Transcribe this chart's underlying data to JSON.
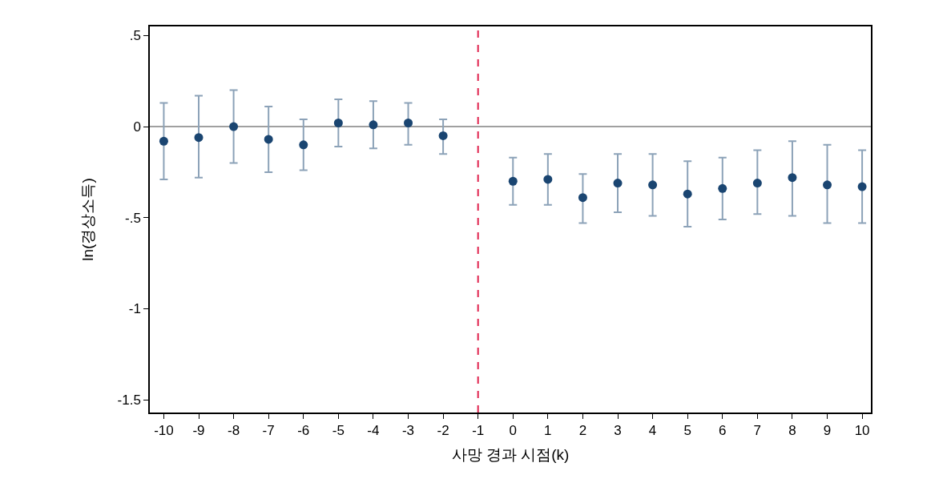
{
  "chart_data": {
    "type": "scatter",
    "xlabel": "사망 경과 시점(k)",
    "ylabel": "ln(경상소득)",
    "x": [
      -10,
      -9,
      -8,
      -7,
      -6,
      -5,
      -4,
      -3,
      -2,
      0,
      1,
      2,
      3,
      4,
      5,
      6,
      7,
      8,
      9,
      10
    ],
    "series": [
      {
        "color": "#1a4571",
        "values": [
          -0.08,
          -0.06,
          0.0,
          -0.07,
          -0.1,
          0.02,
          0.01,
          0.02,
          -0.05,
          -0.3,
          -0.29,
          -0.39,
          -0.31,
          -0.32,
          -0.37,
          -0.34,
          -0.31,
          -0.28,
          -0.32,
          -0.33
        ],
        "errors": [
          [
            -0.29,
            0.13
          ],
          [
            -0.28,
            0.17
          ],
          [
            -0.2,
            0.2
          ],
          [
            -0.25,
            0.11
          ],
          [
            -0.24,
            0.04
          ],
          [
            -0.11,
            0.15
          ],
          [
            -0.12,
            0.14
          ],
          [
            -0.1,
            0.13
          ],
          [
            -0.15,
            0.04
          ],
          [
            -0.43,
            -0.17
          ],
          [
            -0.43,
            -0.15
          ],
          [
            -0.53,
            -0.26
          ],
          [
            -0.47,
            -0.15
          ],
          [
            -0.49,
            -0.15
          ],
          [
            -0.55,
            -0.19
          ],
          [
            -0.51,
            -0.17
          ],
          [
            -0.48,
            -0.13
          ],
          [
            -0.49,
            -0.08
          ],
          [
            -0.53,
            -0.1
          ],
          [
            -0.53,
            -0.13
          ]
        ]
      }
    ],
    "xlim": [
      -10.4,
      10.25
    ],
    "xticks": [
      -10,
      -9,
      -8,
      -7,
      -6,
      -5,
      -4,
      -3,
      -2,
      -1,
      0,
      1,
      2,
      3,
      4,
      5,
      6,
      7,
      8,
      9,
      10
    ],
    "ylim": [
      -1.57,
      0.55
    ],
    "yticks": [
      {
        "value": 0.5,
        "label": ".5"
      },
      0,
      {
        "value": -0.5,
        "label": "-.5"
      },
      -1,
      -1.5
    ],
    "ref_lines": [
      {
        "axis": "y",
        "value": 0,
        "color": "#808080",
        "line_style": "solid"
      },
      {
        "axis": "x",
        "value": -1,
        "color": "#e0234e",
        "line_style": "dashed"
      }
    ],
    "marker": "circle",
    "grid": false
  }
}
